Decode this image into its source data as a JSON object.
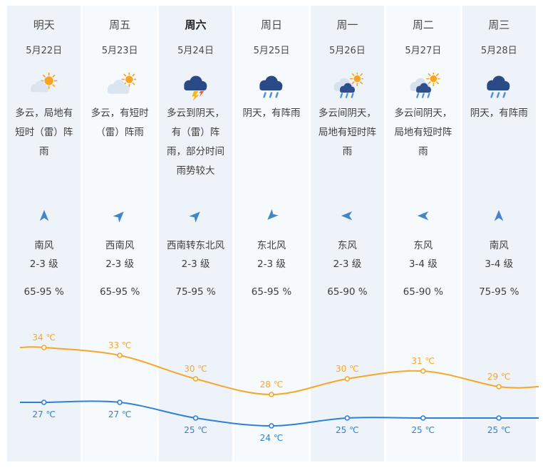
{
  "page": {
    "background": "#ffffff"
  },
  "colors": {
    "column_bg": "#eef3f9",
    "column_bg_alt": "#f7fafc",
    "text": "#3d3d3d",
    "high_line": "#f7a628",
    "low_line": "#2f80d4",
    "wind_arrow": "#4286c9"
  },
  "days": [
    {
      "name": "明天",
      "date": "5月22日",
      "icon": "sun-cloud",
      "desc": "多云，局地有短时（雷）阵雨",
      "wind_arrow": "n",
      "wind_dir": "南风",
      "wind_level": "2-3 级",
      "humidity": "65-95 %",
      "emphasis": false
    },
    {
      "name": "周五",
      "date": "5月23日",
      "icon": "cloud-sun",
      "desc": "多云，有短时（雷）阵雨",
      "wind_arrow": "ne",
      "wind_dir": "西南风",
      "wind_level": "2-3 级",
      "humidity": "65-95 %",
      "emphasis": false
    },
    {
      "name": "周六",
      "date": "5月24日",
      "icon": "thunder-rain",
      "desc": "多云到阴天，有（雷）阵雨，部分时间雨势较大",
      "wind_arrow": "ne",
      "wind_dir": "西南转东北风",
      "wind_level": "2-3 级",
      "humidity": "75-95 %",
      "emphasis": true
    },
    {
      "name": "周日",
      "date": "5月25日",
      "icon": "rain",
      "desc": "阴天，有阵雨",
      "wind_arrow": "sw",
      "wind_dir": "东北风",
      "wind_level": "2-3 级",
      "humidity": "65-95 %",
      "emphasis": false
    },
    {
      "name": "周一",
      "date": "5月26日",
      "icon": "sun-rain",
      "desc": "多云间阴天，局地有短时阵雨",
      "wind_arrow": "w",
      "wind_dir": "东风",
      "wind_level": "2-3 级",
      "humidity": "65-90 %",
      "emphasis": false
    },
    {
      "name": "周二",
      "date": "5月27日",
      "icon": "sun-rain",
      "desc": "多云间阴天，局地有短时阵雨",
      "wind_arrow": "w",
      "wind_dir": "东风",
      "wind_level": "3-4 级",
      "humidity": "65-90 %",
      "emphasis": false
    },
    {
      "name": "周三",
      "date": "5月28日",
      "icon": "rain",
      "desc": "阴天，有阵雨",
      "wind_arrow": "n",
      "wind_dir": "南风",
      "wind_level": "3-4 级",
      "humidity": "75-95 %",
      "emphasis": false
    }
  ],
  "chart_data": {
    "type": "line",
    "categories": [
      "明天",
      "周五",
      "周六",
      "周日",
      "周一",
      "周二",
      "周三"
    ],
    "series": [
      {
        "name": "最高气温",
        "color": "#f7a628",
        "values": [
          34,
          33,
          30,
          28,
          30,
          31,
          29
        ]
      },
      {
        "name": "最低气温",
        "color": "#2f80d4",
        "values": [
          27,
          27,
          25,
          24,
          25,
          25,
          25
        ]
      }
    ],
    "unit": "℃",
    "label_format": "{value} ℃",
    "ylim": [
      23,
      36
    ],
    "grid": false,
    "legend": "none"
  }
}
